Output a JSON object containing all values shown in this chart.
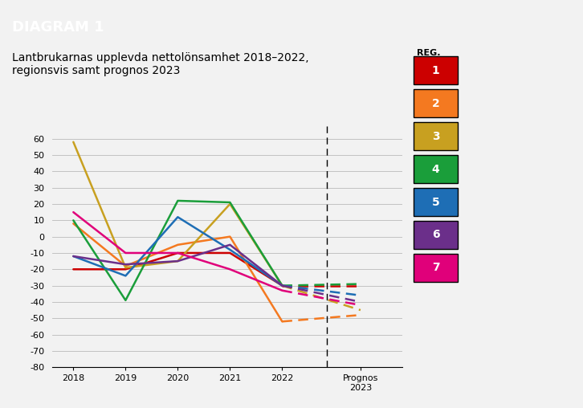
{
  "title_banner": "DIAGRAM 1",
  "subtitle": "Lantbrukarnas upplevda nettolönsamhet 2018–2022,\nregionsvis samt prognos 2023",
  "banner_color": "#7a7a7a",
  "background_color": "#f2f2f2",
  "ylim": [
    -80,
    70
  ],
  "yticks": [
    -80,
    -70,
    -60,
    -50,
    -40,
    -30,
    -20,
    -10,
    0,
    10,
    20,
    30,
    40,
    50,
    60
  ],
  "regions": [
    {
      "id": "1",
      "color": "#cc0000",
      "years": [
        -20,
        -20,
        -10,
        -10,
        -30
      ],
      "prognos": -30
    },
    {
      "id": "2",
      "color": "#f47920",
      "years": [
        8,
        -18,
        -5,
        0,
        -52
      ],
      "prognos": -48
    },
    {
      "id": "3",
      "color": "#c8a020",
      "years": [
        58,
        -19,
        -15,
        20,
        -30
      ],
      "prognos": -45
    },
    {
      "id": "4",
      "color": "#1a9e3a",
      "years": [
        10,
        -39,
        22,
        21,
        -30
      ],
      "prognos": -29
    },
    {
      "id": "5",
      "color": "#1e6eb5",
      "years": [
        -12,
        -24,
        12,
        -8,
        -30
      ],
      "prognos": -36
    },
    {
      "id": "6",
      "color": "#6b2f8a",
      "years": [
        -12,
        -17,
        -15,
        -5,
        -30
      ],
      "prognos": -40
    },
    {
      "id": "7",
      "color": "#e0007a",
      "years": [
        15,
        -10,
        -10,
        -20,
        -33
      ],
      "prognos": -42
    }
  ]
}
